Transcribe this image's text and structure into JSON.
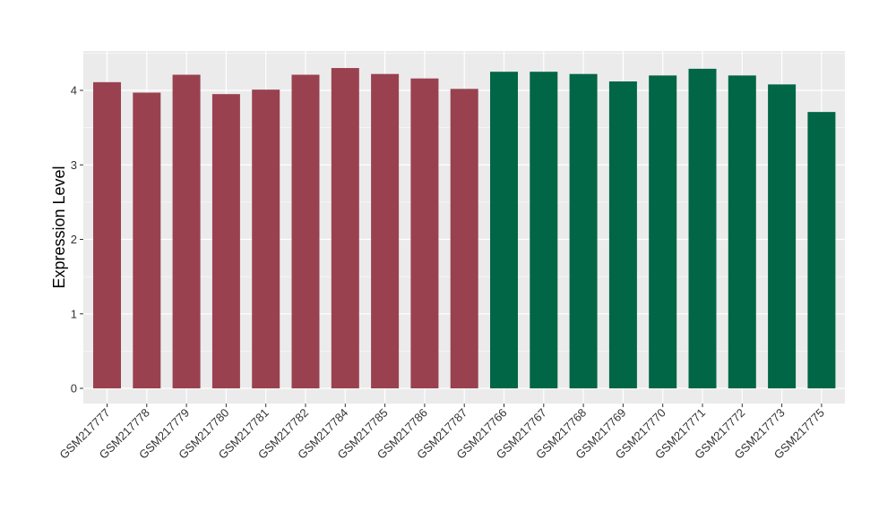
{
  "chart_data": {
    "type": "bar",
    "title": "",
    "xlabel": "",
    "ylabel": "Expression Level",
    "ylim": [
      0,
      4.5
    ],
    "yticks": [
      0,
      1,
      2,
      3,
      4
    ],
    "grid": true,
    "legend": "none",
    "categories": [
      "GSM217777",
      "GSM217778",
      "GSM217779",
      "GSM217780",
      "GSM217781",
      "GSM217782",
      "GSM217784",
      "GSM217785",
      "GSM217786",
      "GSM217787",
      "GSM217766",
      "GSM217767",
      "GSM217768",
      "GSM217769",
      "GSM217770",
      "GSM217771",
      "GSM217772",
      "GSM217773",
      "GSM217775"
    ],
    "values": [
      4.11,
      3.97,
      4.21,
      3.95,
      4.01,
      4.21,
      4.3,
      4.22,
      4.16,
      4.02,
      4.25,
      4.25,
      4.22,
      4.12,
      4.2,
      4.29,
      4.2,
      4.08,
      3.71
    ],
    "group_index": [
      0,
      0,
      0,
      0,
      0,
      0,
      0,
      0,
      0,
      0,
      1,
      1,
      1,
      1,
      1,
      1,
      1,
      1,
      1
    ],
    "group_colors": [
      "#9a4150",
      "#006645"
    ],
    "panel_background": "#ebebeb",
    "grid_color": "#ffffff"
  }
}
